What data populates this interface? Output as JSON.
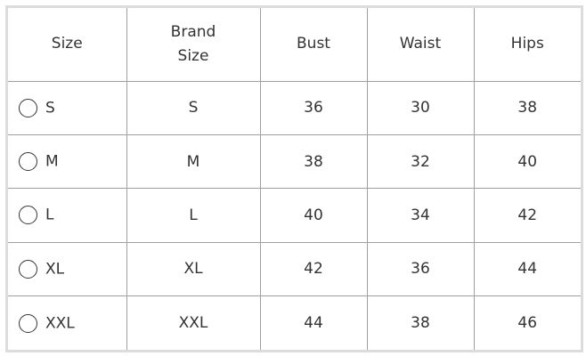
{
  "headers": {
    "size": "Size",
    "brand_size_line1": "Brand",
    "brand_size_line2": "Size",
    "bust": "Bust",
    "waist": "Waist",
    "hips": "Hips"
  },
  "rows": [
    {
      "size": "S",
      "brand_size": "S",
      "bust": "36",
      "waist": "30",
      "hips": "38",
      "selected": false
    },
    {
      "size": "M",
      "brand_size": "M",
      "bust": "38",
      "waist": "32",
      "hips": "40",
      "selected": false
    },
    {
      "size": "L",
      "brand_size": "L",
      "bust": "40",
      "waist": "34",
      "hips": "42",
      "selected": false
    },
    {
      "size": "XL",
      "brand_size": "XL",
      "bust": "42",
      "waist": "36",
      "hips": "44",
      "selected": false
    },
    {
      "size": "XXL",
      "brand_size": "XXL",
      "bust": "44",
      "waist": "38",
      "hips": "46",
      "selected": false
    }
  ]
}
